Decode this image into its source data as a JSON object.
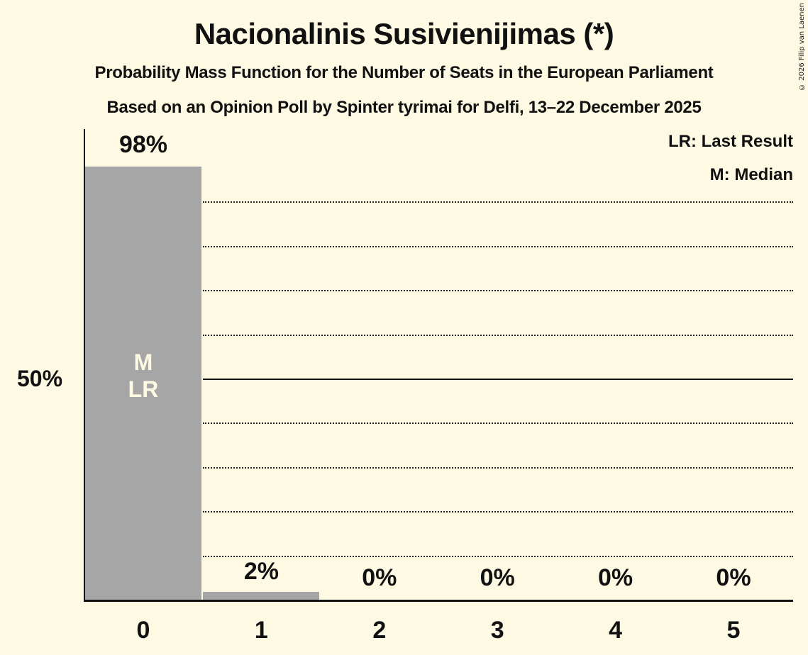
{
  "header": {
    "title": "Nacionalinis Susivienijimas (*)",
    "subtitle": "Probability Mass Function for the Number of Seats in the European Parliament",
    "source": "Based on an Opinion Poll by Spinter tyrimai for Delfi, 13–22 December 2025",
    "copyright": "© 2026 Filip van Laenen"
  },
  "legend": {
    "lr": "LR: Last Result",
    "m": "M: Median"
  },
  "colors": {
    "background": "#fef9e2",
    "bar": "#a6a6a6",
    "axis": "#111111"
  },
  "chart_data": {
    "type": "bar",
    "title": "Nacionalinis Susivienijimas (*)",
    "subtitle": "Probability Mass Function for the Number of Seats in the European Parliament",
    "xlabel": "",
    "ylabel": "",
    "categories": [
      "0",
      "1",
      "2",
      "3",
      "4",
      "5"
    ],
    "values": [
      98,
      2,
      0,
      0,
      0,
      0
    ],
    "value_labels": [
      "98%",
      "2%",
      "0%",
      "0%",
      "0%",
      "0%"
    ],
    "y_tick_labels": [
      "50%"
    ],
    "ylim": [
      0,
      100
    ],
    "grid": {
      "dotted_every_percent": 10,
      "solid_at_percent": 50
    },
    "annotations": [
      {
        "category": "0",
        "labels": [
          "M",
          "LR"
        ]
      }
    ],
    "legend": [
      "LR: Last Result",
      "M: Median"
    ],
    "legend_position": "top-right"
  }
}
